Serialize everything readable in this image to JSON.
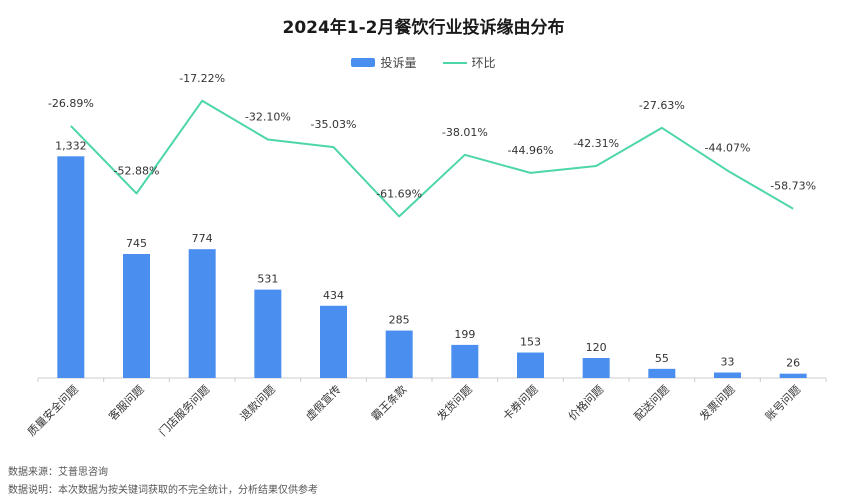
{
  "colors": {
    "bar": "#4a8ef0",
    "line": "#4dd6a8",
    "axis": "#cccccc",
    "label": "#333333"
  },
  "chart_data": {
    "type": "bar",
    "title": "2024年1-2月餐饮行业投诉缘由分布",
    "legend_position": "top",
    "grid": false,
    "categories": [
      "质量安全问题",
      "客服问题",
      "门店服务问题",
      "退款问题",
      "虚假宣传",
      "霸王条款",
      "发货问题",
      "卡券问题",
      "价格问题",
      "配送问题",
      "发票问题",
      "账号问题"
    ],
    "series": [
      {
        "name": "投诉量",
        "type": "bar",
        "values": [
          1332,
          745,
          774,
          531,
          434,
          285,
          199,
          153,
          120,
          55,
          33,
          26
        ],
        "labels": [
          "1,332",
          "745",
          "774",
          "531",
          "434",
          "285",
          "199",
          "153",
          "120",
          "55",
          "33",
          "26"
        ]
      },
      {
        "name": "环比",
        "type": "line",
        "values": [
          -26.89,
          -52.88,
          -17.22,
          -32.1,
          -35.03,
          -61.69,
          -38.01,
          -44.96,
          -42.31,
          -27.63,
          -44.07,
          -58.73
        ],
        "labels": [
          "-26.89%",
          "-52.88%",
          "-17.22%",
          "-32.10%",
          "-35.03%",
          "-61.69%",
          "-38.01%",
          "-44.96%",
          "-42.31%",
          "-27.63%",
          "-44.07%",
          "-58.73%"
        ]
      }
    ]
  },
  "footer": {
    "source": "数据来源：艾普思咨询",
    "note": "数据说明：本次数据为按关键词获取的不完全统计，分析结果仅供参考"
  }
}
